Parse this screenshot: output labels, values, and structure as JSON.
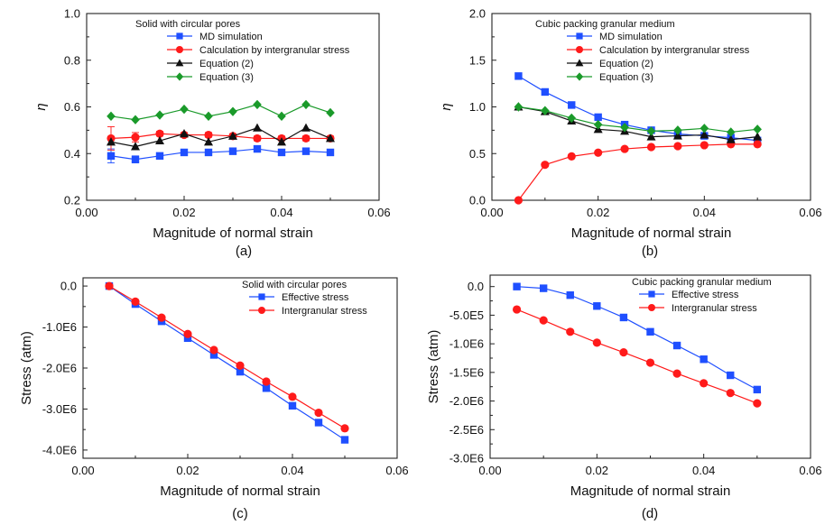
{
  "chart_data": [
    {
      "type": "line",
      "panel": "(a)",
      "xlabel": "Magnitude of normal strain",
      "ylabel": "η",
      "xlim": [
        0,
        0.06
      ],
      "ylim": [
        0.2,
        1.0
      ],
      "xticks": [
        "0.00",
        "0.02",
        "0.04",
        "0.06"
      ],
      "yticks": [
        "0.2",
        "0.4",
        "0.6",
        "0.8",
        "1.0"
      ],
      "legend_title": "Solid with circular pores",
      "legend_position": "top-left",
      "x": [
        0.005,
        0.01,
        0.015,
        0.02,
        0.025,
        0.03,
        0.035,
        0.04,
        0.045,
        0.05
      ],
      "series": [
        {
          "name": "MD simulation",
          "color": "#1f4fff",
          "marker": "square",
          "values": [
            0.39,
            0.375,
            0.39,
            0.405,
            0.405,
            0.41,
            0.42,
            0.405,
            0.41,
            0.405
          ],
          "errors": [
            0.03,
            0.015,
            0.01,
            0.01,
            0.01,
            0.01,
            0.01,
            0.01,
            0.01,
            0.01
          ]
        },
        {
          "name": "Calculation by intergranular stress",
          "color": "#ff1a1a",
          "marker": "circle",
          "values": [
            0.465,
            0.47,
            0.485,
            0.48,
            0.48,
            0.475,
            0.465,
            0.465,
            0.465,
            0.465
          ],
          "errors": [
            0.05,
            0.02,
            0.01,
            0.01,
            0.01,
            0.01,
            0.01,
            0.01,
            0.01,
            0.01
          ]
        },
        {
          "name": "Equation (2)",
          "color": "#111111",
          "marker": "triangle",
          "values": [
            0.45,
            0.43,
            0.455,
            0.485,
            0.45,
            0.475,
            0.51,
            0.45,
            0.51,
            0.465
          ]
        },
        {
          "name": "Equation (3)",
          "color": "#1a9a2a",
          "marker": "diamond",
          "values": [
            0.56,
            0.545,
            0.565,
            0.59,
            0.56,
            0.58,
            0.61,
            0.56,
            0.61,
            0.575
          ]
        }
      ]
    },
    {
      "type": "line",
      "panel": "(b)",
      "xlabel": "Magnitude of normal strain",
      "ylabel": "η",
      "xlim": [
        0,
        0.06
      ],
      "ylim": [
        0,
        2.0
      ],
      "xticks": [
        "0.00",
        "0.02",
        "0.04",
        "0.06"
      ],
      "yticks": [
        "0.0",
        "0.5",
        "1.0",
        "1.5",
        "2.0"
      ],
      "legend_title": "Cubic packing granular medium",
      "legend_position": "top-left",
      "x": [
        0.005,
        0.01,
        0.015,
        0.02,
        0.025,
        0.03,
        0.035,
        0.04,
        0.045,
        0.05
      ],
      "series": [
        {
          "name": "MD simulation",
          "color": "#1f4fff",
          "marker": "square",
          "values": [
            1.33,
            1.16,
            1.02,
            0.89,
            0.81,
            0.75,
            0.71,
            0.69,
            0.67,
            0.64
          ]
        },
        {
          "name": "Calculation by intergranular stress",
          "color": "#ff1a1a",
          "marker": "circle",
          "values": [
            0.0,
            0.38,
            0.47,
            0.51,
            0.55,
            0.57,
            0.58,
            0.59,
            0.6,
            0.6
          ]
        },
        {
          "name": "Equation (2)",
          "color": "#111111",
          "marker": "triangle",
          "values": [
            1.0,
            0.95,
            0.85,
            0.76,
            0.74,
            0.68,
            0.69,
            0.7,
            0.65,
            0.68
          ]
        },
        {
          "name": "Equation (3)",
          "color": "#1a9a2a",
          "marker": "diamond",
          "values": [
            1.0,
            0.96,
            0.88,
            0.81,
            0.78,
            0.74,
            0.75,
            0.77,
            0.73,
            0.76
          ]
        }
      ]
    },
    {
      "type": "line",
      "panel": "(c)",
      "xlabel": "Magnitude of normal strain",
      "ylabel": "Stress (atm)",
      "xlim": [
        0,
        0.06
      ],
      "ylim": [
        -4200000,
        200000
      ],
      "xticks": [
        "0.00",
        "0.02",
        "0.04",
        "0.06"
      ],
      "yticks": [
        "0.0",
        "-1.0E6",
        "-2.0E6",
        "-3.0E6",
        "-4.0E6"
      ],
      "ytick_values": [
        0,
        -1000000,
        -2000000,
        -3000000,
        -4000000
      ],
      "legend_title": "Solid with circular pores",
      "legend_position": "top-right",
      "x": [
        0.005,
        0.01,
        0.015,
        0.02,
        0.025,
        0.03,
        0.035,
        0.04,
        0.045,
        0.05
      ],
      "series": [
        {
          "name": "Effective stress",
          "color": "#1f4fff",
          "marker": "square",
          "values": [
            0,
            -440000,
            -860000,
            -1270000,
            -1680000,
            -2090000,
            -2490000,
            -2920000,
            -3330000,
            -3750000
          ]
        },
        {
          "name": "Intergranular stress",
          "color": "#ff1a1a",
          "marker": "circle",
          "values": [
            0,
            -380000,
            -770000,
            -1170000,
            -1560000,
            -1940000,
            -2330000,
            -2700000,
            -3090000,
            -3470000
          ]
        }
      ]
    },
    {
      "type": "line",
      "panel": "(d)",
      "xlabel": "Magnitude of normal strain",
      "ylabel": "Stress (atm)",
      "xlim": [
        0,
        0.06
      ],
      "ylim": [
        -3000000,
        200000
      ],
      "xticks": [
        "0.00",
        "0.02",
        "0.04",
        "0.06"
      ],
      "yticks": [
        "0.0",
        "-5.0E5",
        "-1.0E6",
        "-1.5E6",
        "-2.0E6",
        "-2.5E6",
        "-3.0E6"
      ],
      "ytick_values": [
        0,
        -500000,
        -1000000,
        -1500000,
        -2000000,
        -2500000,
        -3000000
      ],
      "legend_title": "Cubic packing granular medium",
      "legend_position": "top-right",
      "x": [
        0.005,
        0.01,
        0.015,
        0.02,
        0.025,
        0.03,
        0.035,
        0.04,
        0.045,
        0.05
      ],
      "series": [
        {
          "name": "Effective stress",
          "color": "#1f4fff",
          "marker": "square",
          "values": [
            0,
            -30000,
            -150000,
            -340000,
            -540000,
            -790000,
            -1030000,
            -1270000,
            -1550000,
            -1800000
          ]
        },
        {
          "name": "Intergranular stress",
          "color": "#ff1a1a",
          "marker": "circle",
          "values": [
            -400000,
            -590000,
            -790000,
            -980000,
            -1150000,
            -1330000,
            -1520000,
            -1690000,
            -1860000,
            -2040000
          ]
        }
      ]
    }
  ]
}
